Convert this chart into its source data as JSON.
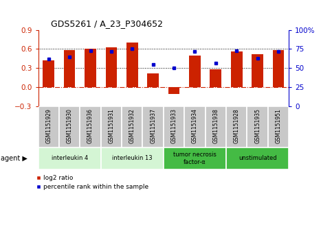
{
  "title": "GDS5261 / A_23_P304652",
  "samples": [
    "GSM1151929",
    "GSM1151930",
    "GSM1151936",
    "GSM1151931",
    "GSM1151932",
    "GSM1151937",
    "GSM1151933",
    "GSM1151934",
    "GSM1151938",
    "GSM1151928",
    "GSM1151935",
    "GSM1151951"
  ],
  "log2_ratio": [
    0.42,
    0.58,
    0.6,
    0.63,
    0.7,
    0.22,
    -0.1,
    0.5,
    0.28,
    0.56,
    0.52,
    0.58
  ],
  "percentile_rank": [
    62,
    65,
    73,
    72,
    75,
    55,
    50,
    72,
    57,
    73,
    63,
    72
  ],
  "agents": [
    {
      "label": "interleukin 4",
      "start": 0,
      "end": 3,
      "color": "#d4f5d4"
    },
    {
      "label": "interleukin 13",
      "start": 3,
      "end": 6,
      "color": "#d4f5d4"
    },
    {
      "label": "tumor necrosis\nfactor-α",
      "start": 6,
      "end": 9,
      "color": "#44bb44"
    },
    {
      "label": "unstimulated",
      "start": 9,
      "end": 12,
      "color": "#44bb44"
    }
  ],
  "ylim_left": [
    -0.3,
    0.9
  ],
  "ylim_right": [
    0,
    100
  ],
  "yticks_left": [
    -0.3,
    0,
    0.3,
    0.6,
    0.9
  ],
  "yticks_right": [
    0,
    25,
    50,
    75,
    100
  ],
  "ytick_labels_right": [
    "0",
    "25",
    "50",
    "75",
    "100%"
  ],
  "hlines": [
    0.3,
    0.6
  ],
  "bar_color": "#cc2200",
  "dot_color": "#0000cc",
  "bar_width": 0.55,
  "bg_color": "#ffffff",
  "plot_bg": "#ffffff",
  "zero_line_color": "#cc2200",
  "left_axis_color": "#cc2200",
  "right_axis_color": "#0000cc",
  "sample_bg": "#c8c8c8",
  "agent_label": "agent ▶"
}
